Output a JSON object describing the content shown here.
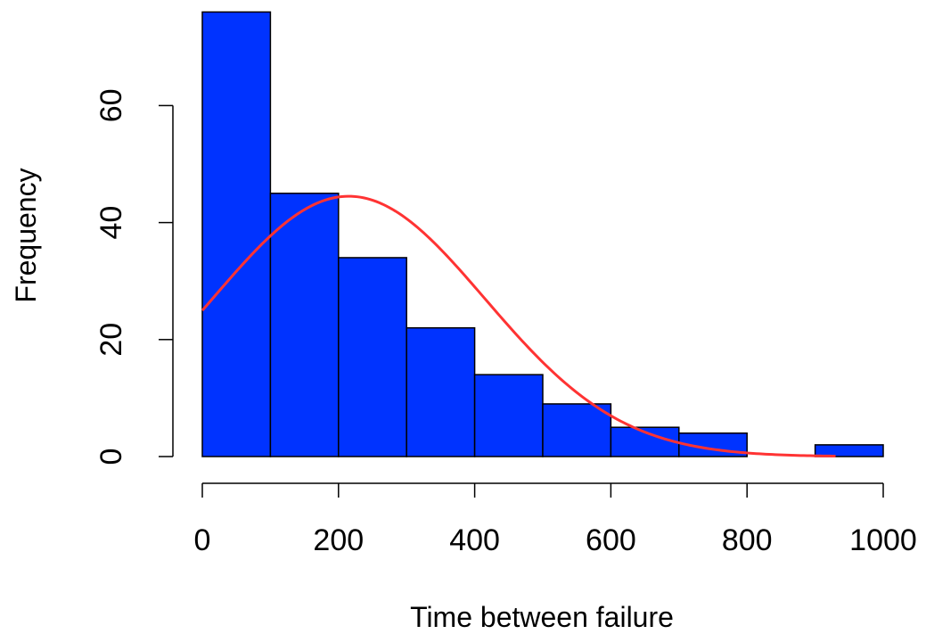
{
  "chart_data": {
    "type": "bar",
    "title": "",
    "xlabel": "Time between failure",
    "ylabel": "Frequency",
    "bins": [
      {
        "start": 0,
        "end": 100,
        "count": 76
      },
      {
        "start": 100,
        "end": 200,
        "count": 45
      },
      {
        "start": 200,
        "end": 300,
        "count": 34
      },
      {
        "start": 300,
        "end": 400,
        "count": 22
      },
      {
        "start": 400,
        "end": 500,
        "count": 14
      },
      {
        "start": 500,
        "end": 600,
        "count": 9
      },
      {
        "start": 600,
        "end": 700,
        "count": 5
      },
      {
        "start": 700,
        "end": 800,
        "count": 4
      },
      {
        "start": 800,
        "end": 900,
        "count": 0
      },
      {
        "start": 900,
        "end": 1000,
        "count": 2
      }
    ],
    "xlim": [
      0,
      1000
    ],
    "ylim": [
      0,
      76
    ],
    "x_ticks": [
      0,
      200,
      400,
      600,
      800,
      1000
    ],
    "y_ticks": [
      0,
      20,
      40,
      60
    ],
    "grid": false,
    "bar_color": "#0033ff",
    "bar_edge_color": "#000000",
    "overlay_curve": {
      "type": "normal-density",
      "color": "#ff3333",
      "mean": 215,
      "sd": 200,
      "peak": 44.5,
      "x_range": [
        0,
        930
      ]
    }
  }
}
